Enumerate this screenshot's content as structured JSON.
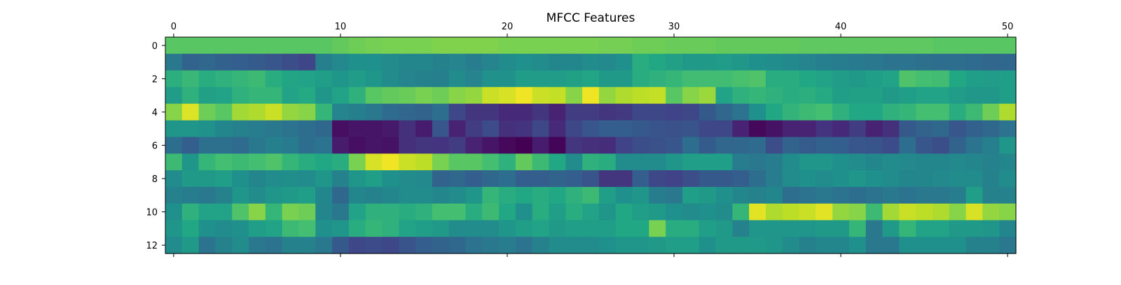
{
  "chart_data": {
    "type": "heatmap",
    "title": "MFCC Features",
    "xlabel": "",
    "ylabel": "",
    "x_ticks": [
      0,
      10,
      20,
      30,
      40,
      50
    ],
    "y_ticks": [
      0,
      2,
      4,
      6,
      8,
      10,
      12
    ],
    "n_cols": 51,
    "n_rows": 13,
    "x_range": [
      -0.5,
      50.5
    ],
    "y_range": [
      12.5,
      -0.5
    ],
    "xaxis_position": "top",
    "grid": false,
    "colormap": "viridis",
    "value_range": [
      0,
      1
    ],
    "values": [
      [
        0.74,
        0.74,
        0.74,
        0.74,
        0.74,
        0.74,
        0.74,
        0.74,
        0.74,
        0.74,
        0.76,
        0.78,
        0.79,
        0.8,
        0.8,
        0.8,
        0.81,
        0.81,
        0.81,
        0.81,
        0.8,
        0.8,
        0.8,
        0.8,
        0.8,
        0.8,
        0.79,
        0.79,
        0.78,
        0.78,
        0.77,
        0.77,
        0.77,
        0.76,
        0.76,
        0.76,
        0.76,
        0.76,
        0.75,
        0.75,
        0.75,
        0.75,
        0.75,
        0.75,
        0.75,
        0.75,
        0.74,
        0.74,
        0.74,
        0.74,
        0.74
      ],
      [
        0.4,
        0.32,
        0.33,
        0.31,
        0.3,
        0.29,
        0.27,
        0.24,
        0.21,
        0.43,
        0.47,
        0.5,
        0.5,
        0.48,
        0.46,
        0.46,
        0.44,
        0.45,
        0.42,
        0.45,
        0.48,
        0.5,
        0.48,
        0.46,
        0.46,
        0.48,
        0.47,
        0.5,
        0.62,
        0.6,
        0.57,
        0.54,
        0.54,
        0.55,
        0.53,
        0.5,
        0.49,
        0.47,
        0.45,
        0.43,
        0.42,
        0.41,
        0.4,
        0.38,
        0.38,
        0.37,
        0.36,
        0.36,
        0.35,
        0.33,
        0.34
      ],
      [
        0.63,
        0.67,
        0.62,
        0.64,
        0.66,
        0.68,
        0.62,
        0.59,
        0.58,
        0.56,
        0.52,
        0.55,
        0.52,
        0.48,
        0.45,
        0.44,
        0.43,
        0.48,
        0.45,
        0.51,
        0.51,
        0.55,
        0.55,
        0.55,
        0.57,
        0.59,
        0.54,
        0.54,
        0.62,
        0.64,
        0.66,
        0.69,
        0.69,
        0.69,
        0.71,
        0.72,
        0.62,
        0.62,
        0.6,
        0.58,
        0.55,
        0.54,
        0.56,
        0.58,
        0.72,
        0.7,
        0.69,
        0.6,
        0.56,
        0.55,
        0.56
      ],
      [
        0.55,
        0.64,
        0.57,
        0.58,
        0.64,
        0.66,
        0.66,
        0.58,
        0.61,
        0.52,
        0.58,
        0.64,
        0.74,
        0.76,
        0.77,
        0.8,
        0.78,
        0.82,
        0.84,
        0.92,
        0.94,
        0.98,
        0.92,
        0.91,
        0.82,
        0.98,
        0.84,
        0.88,
        0.9,
        0.91,
        0.74,
        0.82,
        0.85,
        0.58,
        0.64,
        0.66,
        0.64,
        0.62,
        0.63,
        0.61,
        0.56,
        0.57,
        0.57,
        0.54,
        0.56,
        0.58,
        0.58,
        0.55,
        0.53,
        0.53,
        0.56
      ],
      [
        0.82,
        0.95,
        0.78,
        0.74,
        0.86,
        0.88,
        0.92,
        0.84,
        0.82,
        0.66,
        0.45,
        0.43,
        0.4,
        0.35,
        0.33,
        0.32,
        0.36,
        0.22,
        0.16,
        0.16,
        0.12,
        0.12,
        0.16,
        0.1,
        0.18,
        0.18,
        0.16,
        0.17,
        0.22,
        0.22,
        0.2,
        0.22,
        0.28,
        0.33,
        0.38,
        0.5,
        0.6,
        0.65,
        0.68,
        0.7,
        0.64,
        0.6,
        0.6,
        0.64,
        0.66,
        0.7,
        0.7,
        0.62,
        0.68,
        0.78,
        0.88
      ],
      [
        0.52,
        0.52,
        0.51,
        0.46,
        0.44,
        0.42,
        0.4,
        0.38,
        0.36,
        0.34,
        0.04,
        0.06,
        0.06,
        0.07,
        0.14,
        0.08,
        0.27,
        0.1,
        0.18,
        0.23,
        0.14,
        0.15,
        0.22,
        0.12,
        0.22,
        0.27,
        0.3,
        0.3,
        0.28,
        0.26,
        0.25,
        0.26,
        0.22,
        0.22,
        0.1,
        0.02,
        0.05,
        0.1,
        0.1,
        0.15,
        0.12,
        0.18,
        0.1,
        0.14,
        0.28,
        0.32,
        0.34,
        0.27,
        0.31,
        0.34,
        0.38
      ],
      [
        0.36,
        0.3,
        0.37,
        0.37,
        0.35,
        0.4,
        0.43,
        0.41,
        0.36,
        0.38,
        0.08,
        0.04,
        0.06,
        0.05,
        0.14,
        0.16,
        0.15,
        0.18,
        0.1,
        0.06,
        0.02,
        0.0,
        0.08,
        0.01,
        0.16,
        0.14,
        0.13,
        0.2,
        0.24,
        0.25,
        0.27,
        0.36,
        0.29,
        0.33,
        0.33,
        0.35,
        0.24,
        0.32,
        0.29,
        0.31,
        0.3,
        0.27,
        0.26,
        0.23,
        0.36,
        0.27,
        0.24,
        0.32,
        0.38,
        0.43,
        0.52
      ],
      [
        0.68,
        0.52,
        0.66,
        0.7,
        0.68,
        0.7,
        0.72,
        0.66,
        0.62,
        0.6,
        0.62,
        0.8,
        0.94,
        0.98,
        0.92,
        0.9,
        0.8,
        0.74,
        0.74,
        0.7,
        0.64,
        0.76,
        0.68,
        0.6,
        0.48,
        0.64,
        0.62,
        0.48,
        0.48,
        0.48,
        0.52,
        0.56,
        0.56,
        0.56,
        0.42,
        0.4,
        0.42,
        0.48,
        0.52,
        0.52,
        0.5,
        0.48,
        0.46,
        0.48,
        0.47,
        0.46,
        0.46,
        0.47,
        0.46,
        0.44,
        0.46
      ],
      [
        0.48,
        0.54,
        0.54,
        0.56,
        0.5,
        0.46,
        0.48,
        0.49,
        0.48,
        0.52,
        0.44,
        0.52,
        0.56,
        0.5,
        0.48,
        0.47,
        0.32,
        0.34,
        0.3,
        0.34,
        0.36,
        0.3,
        0.3,
        0.32,
        0.3,
        0.26,
        0.16,
        0.16,
        0.3,
        0.22,
        0.2,
        0.24,
        0.28,
        0.28,
        0.3,
        0.36,
        0.42,
        0.48,
        0.5,
        0.48,
        0.5,
        0.52,
        0.5,
        0.48,
        0.46,
        0.46,
        0.47,
        0.48,
        0.48,
        0.44,
        0.48
      ],
      [
        0.44,
        0.42,
        0.4,
        0.44,
        0.52,
        0.48,
        0.52,
        0.54,
        0.56,
        0.46,
        0.34,
        0.46,
        0.44,
        0.46,
        0.48,
        0.48,
        0.46,
        0.48,
        0.52,
        0.66,
        0.62,
        0.6,
        0.62,
        0.6,
        0.64,
        0.68,
        0.56,
        0.5,
        0.52,
        0.42,
        0.4,
        0.56,
        0.54,
        0.5,
        0.46,
        0.44,
        0.46,
        0.36,
        0.38,
        0.4,
        0.38,
        0.36,
        0.38,
        0.4,
        0.38,
        0.4,
        0.4,
        0.42,
        0.56,
        0.44,
        0.44
      ],
      [
        0.5,
        0.64,
        0.58,
        0.58,
        0.72,
        0.82,
        0.66,
        0.8,
        0.78,
        0.46,
        0.4,
        0.58,
        0.64,
        0.64,
        0.62,
        0.64,
        0.7,
        0.7,
        0.62,
        0.68,
        0.6,
        0.5,
        0.62,
        0.56,
        0.62,
        0.58,
        0.52,
        0.6,
        0.56,
        0.54,
        0.5,
        0.48,
        0.5,
        0.48,
        0.66,
        0.96,
        0.88,
        0.9,
        0.92,
        0.96,
        0.84,
        0.82,
        0.68,
        0.86,
        0.92,
        0.9,
        0.88,
        0.82,
        0.94,
        0.84,
        0.82
      ],
      [
        0.52,
        0.6,
        0.5,
        0.48,
        0.5,
        0.56,
        0.58,
        0.68,
        0.7,
        0.5,
        0.52,
        0.62,
        0.66,
        0.64,
        0.58,
        0.56,
        0.54,
        0.48,
        0.48,
        0.48,
        0.52,
        0.56,
        0.58,
        0.54,
        0.56,
        0.56,
        0.56,
        0.6,
        0.6,
        0.8,
        0.62,
        0.62,
        0.56,
        0.54,
        0.44,
        0.52,
        0.52,
        0.52,
        0.52,
        0.54,
        0.54,
        0.66,
        0.4,
        0.54,
        0.66,
        0.58,
        0.58,
        0.54,
        0.54,
        0.52,
        0.46
      ],
      [
        0.48,
        0.54,
        0.38,
        0.44,
        0.48,
        0.4,
        0.38,
        0.44,
        0.44,
        0.4,
        0.28,
        0.22,
        0.23,
        0.22,
        0.26,
        0.3,
        0.32,
        0.34,
        0.38,
        0.4,
        0.42,
        0.38,
        0.44,
        0.48,
        0.48,
        0.48,
        0.5,
        0.52,
        0.52,
        0.54,
        0.56,
        0.56,
        0.5,
        0.54,
        0.54,
        0.54,
        0.52,
        0.48,
        0.44,
        0.46,
        0.46,
        0.5,
        0.4,
        0.4,
        0.5,
        0.5,
        0.5,
        0.5,
        0.44,
        0.44,
        0.4
      ]
    ]
  }
}
